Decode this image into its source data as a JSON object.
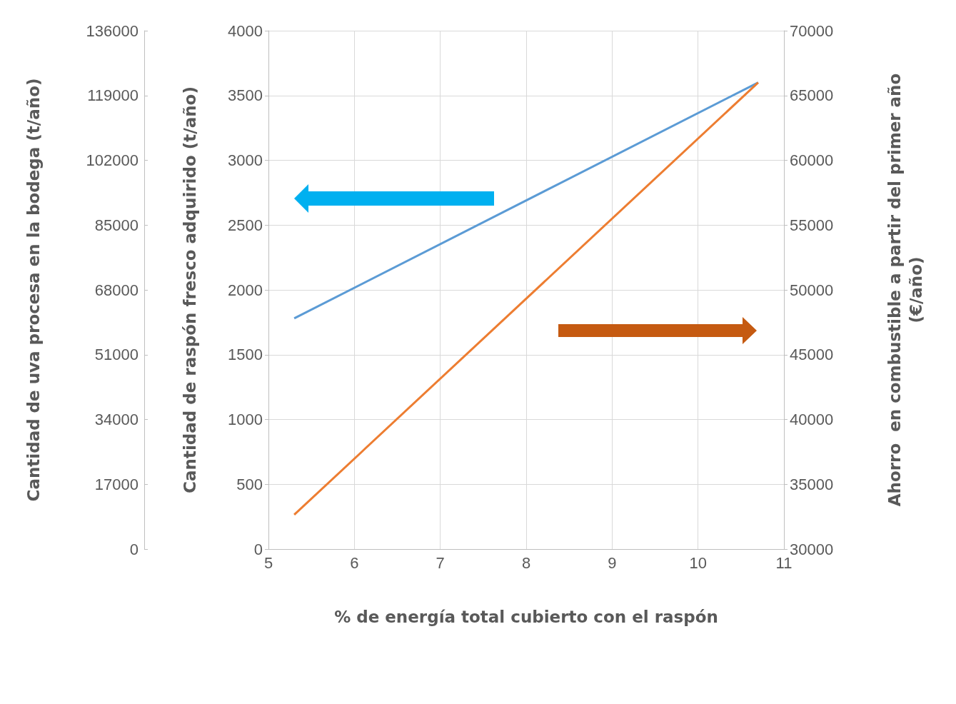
{
  "chart_data": {
    "type": "line",
    "xlabel": "% de energía total cubierto con el raspón",
    "ylabel": "Cantidad de raspón fresco adquirido (t/año)",
    "y2label": "Ahorro  en combustible a partir del primer año\n(€/año)",
    "y3label": "Cantidad de uva procesa en la bodega (t/año)",
    "x": [
      5.3,
      10.7
    ],
    "series": [
      {
        "color": "#5b9bd5",
        "values": [
          1780,
          3600
        ]
      },
      {
        "color": "#ed7d31",
        "values": [
          32650,
          66000
        ],
        "axis": "y2"
      }
    ],
    "xlim": [
      5,
      11
    ],
    "xticks": [
      5,
      6,
      7,
      8,
      9,
      10,
      11
    ],
    "ylim": [
      0,
      4000
    ],
    "yticks": [
      0,
      500,
      1000,
      1500,
      2000,
      2500,
      3000,
      3500,
      4000
    ],
    "y2lim": [
      30000,
      70000
    ],
    "y2ticks": [
      30000,
      35000,
      40000,
      45000,
      50000,
      55000,
      60000,
      65000,
      70000
    ],
    "y3lim": [
      0,
      136000
    ],
    "y3ticks": [
      0,
      17000,
      34000,
      51000,
      68000,
      85000,
      102000,
      119000,
      136000
    ],
    "grid": true,
    "marker": "none",
    "line_style": "solid"
  }
}
